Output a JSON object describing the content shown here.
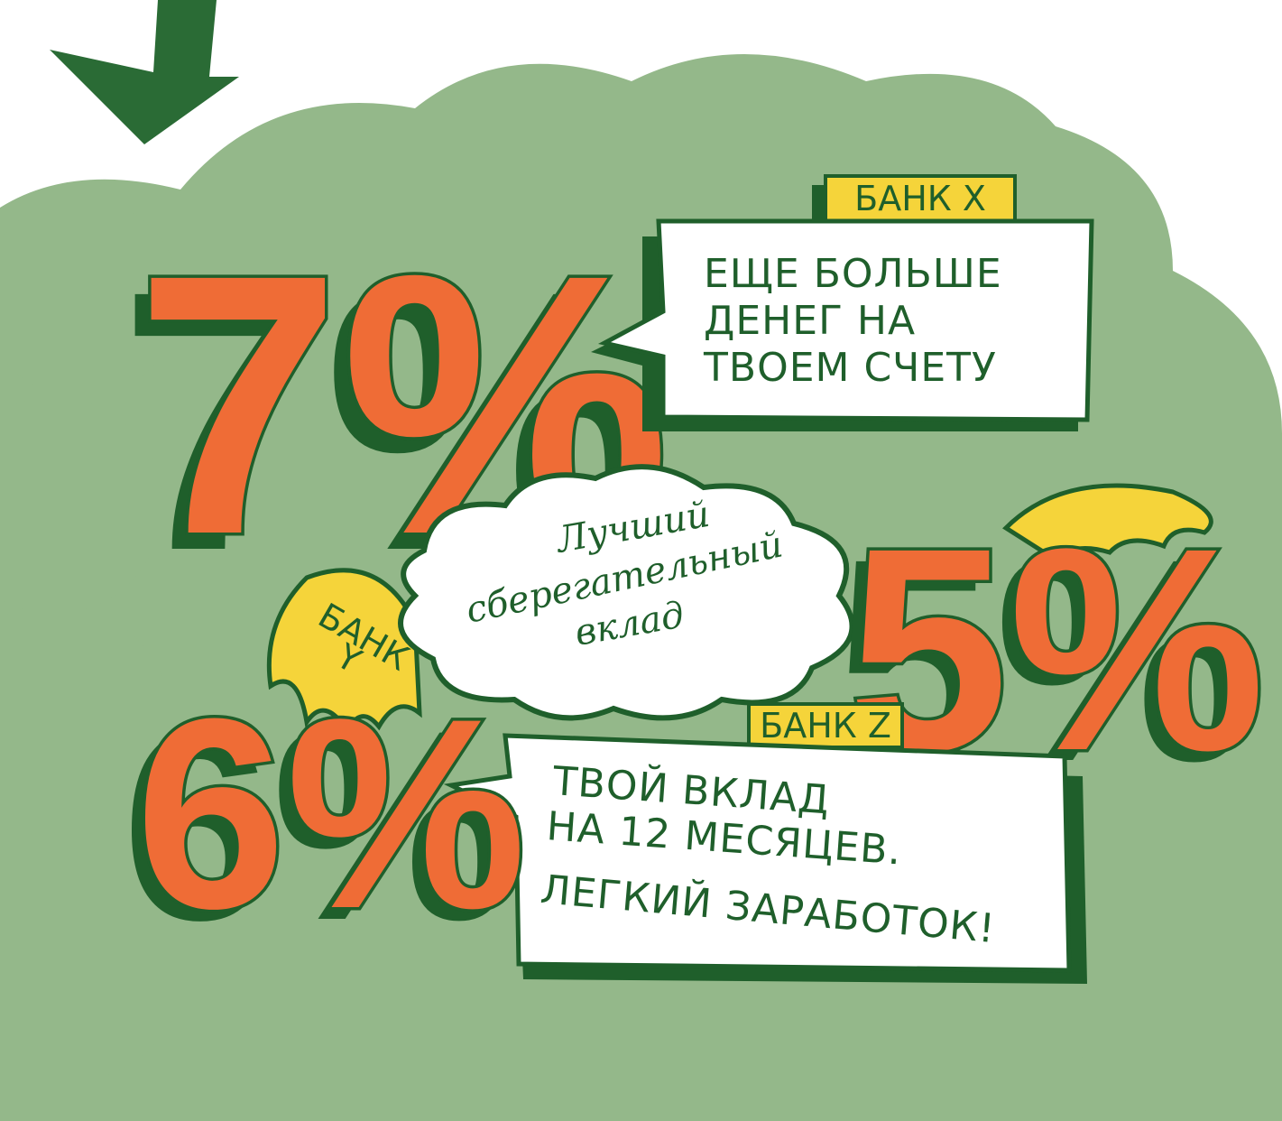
{
  "bank_x": {
    "label": "БАНК X",
    "rate": "7%",
    "message": [
      "ЕЩЕ БОЛЬШЕ",
      "ДЕНЕГ НА",
      "ТВОЕМ СЧЕТУ"
    ]
  },
  "center": {
    "lines": [
      "Лучший",
      "сберегательный",
      "вклад"
    ]
  },
  "bank_y": {
    "label": [
      "БАНК",
      "Y"
    ],
    "rate": "5%"
  },
  "bank_z": {
    "label": "БАНК Z",
    "rate": "6%",
    "message": [
      "ТВОЙ ВКЛАД",
      "НА 12 МЕСЯЦЕВ.",
      "ЛЕГКИЙ ЗАРАБОТОК!"
    ]
  }
}
